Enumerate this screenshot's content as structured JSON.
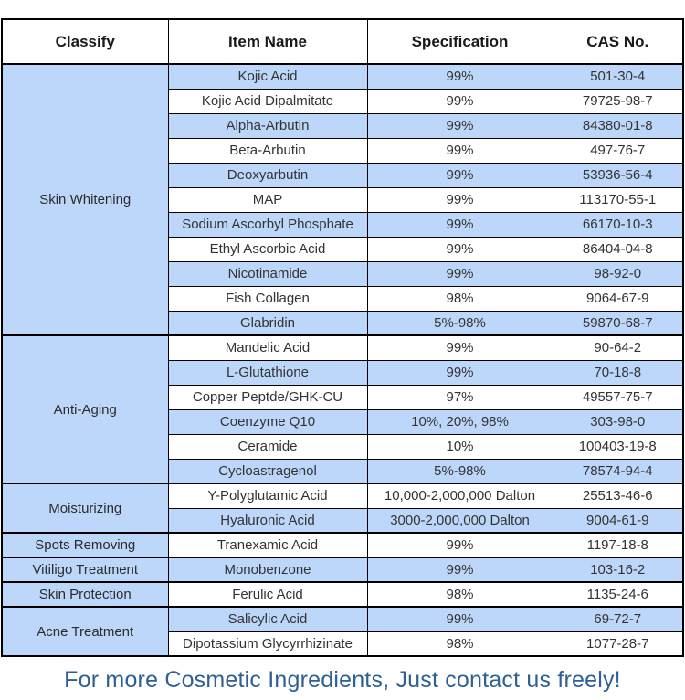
{
  "table": {
    "headers": [
      "Classify",
      "Item Name",
      "Specification",
      "CAS No."
    ],
    "groups": [
      {
        "classify": "Skin Whitening",
        "rows": [
          {
            "item": "Kojic Acid",
            "spec": "99%",
            "cas": "501-30-4",
            "shade": true
          },
          {
            "item": "Kojic Acid Dipalmitate",
            "spec": "99%",
            "cas": "79725-98-7",
            "shade": false
          },
          {
            "item": "Alpha-Arbutin",
            "spec": "99%",
            "cas": "84380-01-8",
            "shade": true
          },
          {
            "item": "Beta-Arbutin",
            "spec": "99%",
            "cas": "497-76-7",
            "shade": false
          },
          {
            "item": "Deoxyarbutin",
            "spec": "99%",
            "cas": "53936-56-4",
            "shade": true
          },
          {
            "item": "MAP",
            "spec": "99%",
            "cas": "113170-55-1",
            "shade": false
          },
          {
            "item": "Sodium Ascorbyl Phosphate",
            "spec": "99%",
            "cas": "66170-10-3",
            "shade": true
          },
          {
            "item": "Ethyl Ascorbic Acid",
            "spec": "99%",
            "cas": "86404-04-8",
            "shade": false
          },
          {
            "item": "Nicotinamide",
            "spec": "99%",
            "cas": "98-92-0",
            "shade": true
          },
          {
            "item": "Fish Collagen",
            "spec": "98%",
            "cas": "9064-67-9",
            "shade": false
          },
          {
            "item": "Glabridin",
            "spec": "5%-98%",
            "cas": "59870-68-7",
            "shade": true
          }
        ]
      },
      {
        "classify": "Anti-Aging",
        "rows": [
          {
            "item": "Mandelic Acid",
            "spec": "99%",
            "cas": "90-64-2",
            "shade": false
          },
          {
            "item": "L-Glutathione",
            "spec": "99%",
            "cas": "70-18-8",
            "shade": true
          },
          {
            "item": "Copper Peptde/GHK-CU",
            "spec": "97%",
            "cas": "49557-75-7",
            "shade": false
          },
          {
            "item": "Coenzyme Q10",
            "spec": "10%, 20%, 98%",
            "cas": "303-98-0",
            "shade": true
          },
          {
            "item": "Ceramide",
            "spec": "10%",
            "cas": "100403-19-8",
            "shade": false
          },
          {
            "item": "Cycloastragenol",
            "spec": "5%-98%",
            "cas": "78574-94-4",
            "shade": true
          }
        ]
      },
      {
        "classify": "Moisturizing",
        "rows": [
          {
            "item": "Y-Polyglutamic Acid",
            "spec": "10,000-2,000,000 Dalton",
            "cas": "25513-46-6",
            "shade": false
          },
          {
            "item": "Hyaluronic Acid",
            "spec": "3000-2,000,000 Dalton",
            "cas": "9004-61-9",
            "shade": true
          }
        ]
      },
      {
        "classify": "Spots Removing",
        "rows": [
          {
            "item": "Tranexamic Acid",
            "spec": "99%",
            "cas": "1197-18-8",
            "shade": false
          }
        ]
      },
      {
        "classify": "Vitiligo Treatment",
        "rows": [
          {
            "item": "Monobenzone",
            "spec": "99%",
            "cas": "103-16-2",
            "shade": true
          }
        ]
      },
      {
        "classify": "Skin Protection",
        "rows": [
          {
            "item": "Ferulic Acid",
            "spec": "98%",
            "cas": "1135-24-6",
            "shade": false
          }
        ]
      },
      {
        "classify": "Acne Treatment",
        "rows": [
          {
            "item": "Salicylic Acid",
            "spec": "99%",
            "cas": "69-72-7",
            "shade": true
          },
          {
            "item": "Dipotassium Glycyrrhizinate",
            "spec": "98%",
            "cas": "1077-28-7",
            "shade": false
          }
        ]
      }
    ]
  },
  "footer": {
    "text": "For more Cosmetic Ingredients, Just contact us freely!"
  },
  "colors": {
    "row_shade": "#BDD7FA",
    "footer_text": "#2E6094",
    "border": "#000000"
  }
}
